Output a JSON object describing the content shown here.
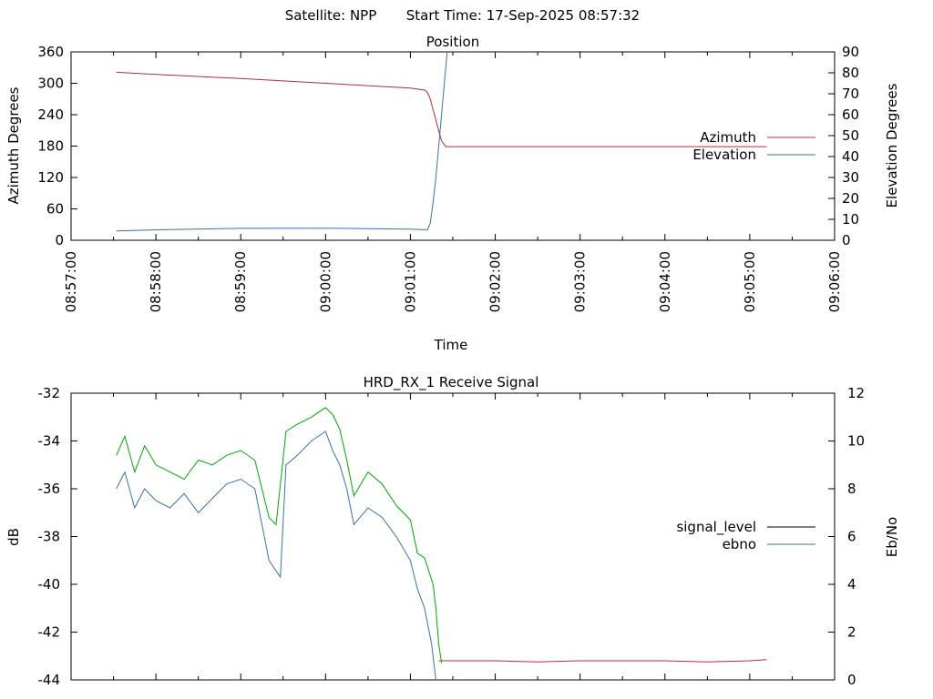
{
  "header": {
    "satellite": "Satellite: NPP",
    "start_time": "Start Time: 17-Sep-2025 08:57:32"
  },
  "colors": {
    "azimuth": "#b03038",
    "elevation": "#3a70b0",
    "signal_level": "#000000",
    "ebno": "#3a70b0",
    "strong_signal": "#00aa00",
    "weak_signal": "#b03038"
  },
  "chart_data": [
    {
      "type": "line",
      "title": "Position",
      "xlabel": "Time",
      "ylabel": "Azimuth Degrees",
      "y2label": "Elevation Degrees",
      "xlim": [
        "08:57:00",
        "09:06:00"
      ],
      "x_ticks": [
        "08:57:00",
        "08:58:00",
        "08:59:00",
        "09:00:00",
        "09:01:00",
        "09:02:00",
        "09:03:00",
        "09:04:00",
        "09:05:00",
        "09:06:00"
      ],
      "ylim": [
        0,
        360
      ],
      "y_ticks": [
        "0",
        "60",
        "120",
        "180",
        "240",
        "300",
        "360"
      ],
      "y2lim": [
        0,
        90
      ],
      "y2_ticks": [
        "0",
        "10",
        "20",
        "30",
        "40",
        "50",
        "60",
        "70",
        "80",
        "90"
      ],
      "legend": "right",
      "grid": false,
      "series": [
        {
          "name": "Azimuth",
          "axis": "y",
          "x": [
            "08:57:32",
            "08:58:00",
            "08:59:00",
            "09:00:00",
            "09:01:00",
            "09:01:10",
            "09:01:12",
            "09:01:14",
            "09:01:16",
            "09:01:19",
            "09:01:22",
            "09:01:25",
            "09:02:00",
            "09:03:00",
            "09:04:00",
            "09:05:00",
            "09:05:12"
          ],
          "values": [
            321,
            317,
            309,
            300,
            291,
            287,
            283,
            270,
            250,
            220,
            190,
            179,
            179,
            179,
            179,
            179,
            179
          ]
        },
        {
          "name": "Elevation",
          "axis": "y2",
          "x": [
            "08:57:32",
            "08:58:00",
            "08:59:00",
            "09:00:00",
            "09:01:00",
            "09:01:12",
            "09:01:14",
            "09:01:16",
            "09:01:18",
            "09:01:20",
            "09:01:22",
            "09:01:24",
            "09:01:26"
          ],
          "values": [
            4.5,
            5.0,
            5.7,
            5.8,
            5.3,
            5.0,
            8,
            18,
            30,
            45,
            60,
            75,
            90
          ]
        }
      ]
    },
    {
      "type": "line",
      "title": "HRD_RX_1 Receive Signal",
      "xlabel": "",
      "ylabel": "dB",
      "y2label": "Eb/No",
      "xlim": [
        "08:57:00",
        "09:06:00"
      ],
      "ylim": [
        -44,
        -32
      ],
      "y_ticks": [
        "-44",
        "-42",
        "-40",
        "-38",
        "-36",
        "-34",
        "-32"
      ],
      "y2lim": [
        0,
        12
      ],
      "y2_ticks": [
        "0",
        "2",
        "4",
        "6",
        "8",
        "10",
        "12"
      ],
      "legend": "right",
      "grid": false,
      "series": [
        {
          "name": "signal_level",
          "axis": "y",
          "x": [
            "08:57:32",
            "08:57:38",
            "08:57:45",
            "08:57:52",
            "08:58:00",
            "08:58:10",
            "08:58:20",
            "08:58:30",
            "08:58:40",
            "08:58:50",
            "08:59:00",
            "08:59:10",
            "08:59:20",
            "08:59:25",
            "08:59:32",
            "08:59:40",
            "08:59:50",
            "09:00:00",
            "09:00:05",
            "09:00:10",
            "09:00:15",
            "09:00:20",
            "09:00:30",
            "09:00:40",
            "09:00:50",
            "09:01:00",
            "09:01:05",
            "09:01:10",
            "09:01:16",
            "09:01:18",
            "09:01:20",
            "09:01:22"
          ],
          "values": [
            -34.6,
            -33.8,
            -35.3,
            -34.2,
            -35.0,
            -35.3,
            -35.6,
            -34.8,
            -35.0,
            -34.6,
            -34.4,
            -34.8,
            -37.2,
            -37.5,
            -33.6,
            -33.3,
            -33.0,
            -32.6,
            -32.9,
            -33.5,
            -34.8,
            -36.3,
            -35.3,
            -35.8,
            -36.7,
            -37.3,
            -38.7,
            -38.9,
            -40.0,
            -41.0,
            -42.5,
            -43.3
          ]
        },
        {
          "name": "ebno",
          "axis": "y2",
          "x": [
            "08:57:32",
            "08:57:38",
            "08:57:45",
            "08:57:52",
            "08:58:00",
            "08:58:10",
            "08:58:20",
            "08:58:30",
            "08:58:40",
            "08:58:50",
            "08:59:00",
            "08:59:10",
            "08:59:20",
            "08:59:28",
            "08:59:32",
            "08:59:40",
            "08:59:50",
            "09:00:00",
            "09:00:05",
            "09:00:10",
            "09:00:15",
            "09:00:20",
            "09:00:30",
            "09:00:40",
            "09:00:50",
            "09:01:00",
            "09:01:05",
            "09:01:10",
            "09:01:15",
            "09:01:18"
          ],
          "values": [
            8.0,
            8.7,
            7.2,
            8.0,
            7.5,
            7.2,
            7.8,
            7.0,
            7.6,
            8.2,
            8.4,
            8.0,
            5.0,
            4.3,
            9.0,
            9.4,
            10.0,
            10.4,
            9.6,
            9.0,
            8.0,
            6.5,
            7.2,
            6.8,
            6.0,
            5.0,
            3.8,
            3.0,
            1.5,
            0.0
          ]
        }
      ],
      "tail": {
        "x": [
          "09:01:20",
          "09:01:40",
          "09:02:00",
          "09:02:30",
          "09:03:00",
          "09:03:30",
          "09:04:00",
          "09:04:30",
          "09:05:00",
          "09:05:12"
        ],
        "values": [
          -43.2,
          -43.2,
          -43.2,
          -43.25,
          -43.2,
          -43.2,
          -43.2,
          -43.25,
          -43.2,
          -43.15
        ]
      }
    }
  ]
}
